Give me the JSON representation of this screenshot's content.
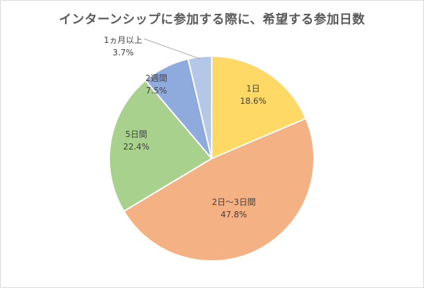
{
  "chart_data": {
    "type": "pie",
    "title": "インターンシップに参加する際に、希望する参加日数",
    "start_angle_deg": 0,
    "direction": "clockwise",
    "slices": [
      {
        "label": "1日",
        "value": 18.6,
        "value_label": "18.6%",
        "color": "#FFD966"
      },
      {
        "label": "2日〜3日間",
        "value": 47.8,
        "value_label": "47.8%",
        "color": "#F4B183"
      },
      {
        "label": "5日間",
        "value": 22.4,
        "value_label": "22.4%",
        "color": "#A9D18E"
      },
      {
        "label": "2週間",
        "value": 7.5,
        "value_label": "7.5%",
        "color": "#8FAADC"
      },
      {
        "label": "1ヵ月以上",
        "value": 3.7,
        "value_label": "3.7%",
        "color": "#B4C7E7"
      }
    ]
  }
}
